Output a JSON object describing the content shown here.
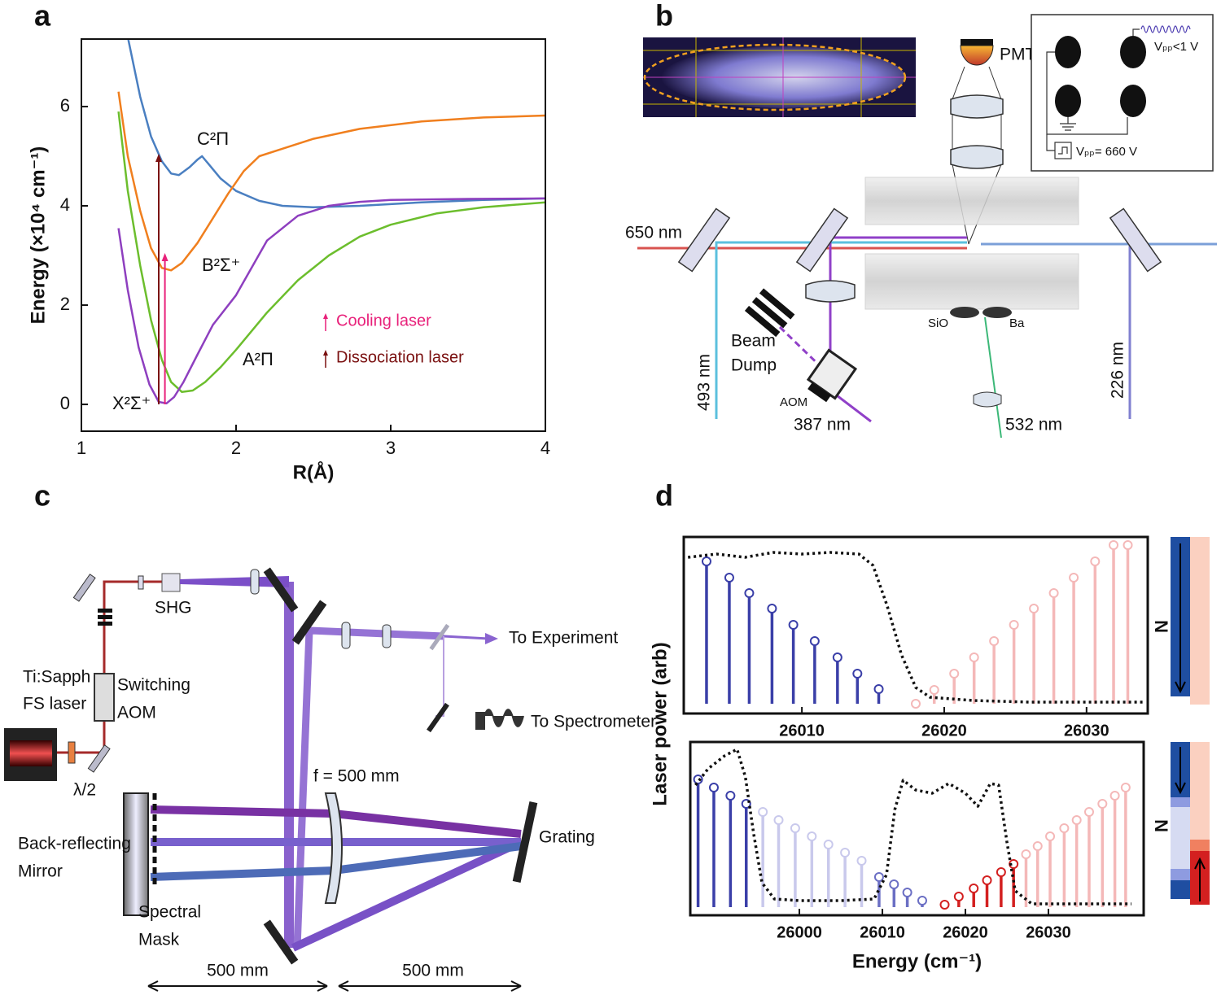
{
  "panel_labels": [
    "a",
    "b",
    "c",
    "d"
  ],
  "chart_data": [
    {
      "type": "line",
      "x_label": "R(Å)",
      "y_label": "Energy (×10⁴ cm⁻¹)",
      "xlim": [
        1,
        4
      ],
      "ylim": [
        -0.54,
        7.36
      ],
      "xticks": [
        1,
        2,
        3,
        4
      ],
      "yticks": [
        0,
        2,
        4,
        6
      ],
      "series": [
        {
          "name": "C²Π",
          "color": "#4a7fc1",
          "x": [
            1.3,
            1.38,
            1.45,
            1.52,
            1.58,
            1.63,
            1.7,
            1.75,
            1.78,
            1.82,
            1.9,
            2.0,
            2.15,
            2.3,
            2.5,
            2.8,
            3.2,
            3.6,
            4.0
          ],
          "values": [
            7.4,
            6.2,
            5.4,
            4.9,
            4.65,
            4.62,
            4.78,
            4.93,
            5.0,
            4.85,
            4.55,
            4.3,
            4.1,
            4.0,
            3.97,
            4.0,
            4.07,
            4.12,
            4.15
          ]
        },
        {
          "name": "B²Σ⁺",
          "color": "#f07f1e",
          "x": [
            1.24,
            1.3,
            1.38,
            1.45,
            1.52,
            1.58,
            1.65,
            1.75,
            1.85,
            1.95,
            2.05,
            2.15,
            2.3,
            2.5,
            2.8,
            3.2,
            3.6,
            4.0
          ],
          "values": [
            6.3,
            5.0,
            3.9,
            3.15,
            2.75,
            2.7,
            2.85,
            3.25,
            3.75,
            4.25,
            4.7,
            5.0,
            5.15,
            5.35,
            5.55,
            5.7,
            5.78,
            5.82
          ]
        },
        {
          "name": "A²Π",
          "color": "#6cbe2d",
          "x": [
            1.24,
            1.3,
            1.38,
            1.45,
            1.52,
            1.58,
            1.65,
            1.72,
            1.8,
            1.9,
            2.0,
            2.2,
            2.4,
            2.6,
            2.8,
            3.0,
            3.3,
            3.6,
            4.0
          ],
          "values": [
            5.9,
            4.3,
            2.8,
            1.7,
            0.9,
            0.45,
            0.25,
            0.28,
            0.45,
            0.75,
            1.1,
            1.85,
            2.5,
            3.0,
            3.38,
            3.62,
            3.85,
            3.97,
            4.07
          ]
        },
        {
          "name": "X²Σ⁺",
          "color": "#8e3fbf",
          "x": [
            1.24,
            1.3,
            1.37,
            1.44,
            1.5,
            1.55,
            1.6,
            1.66,
            1.75,
            1.85,
            2.0,
            2.2,
            2.4,
            2.6,
            2.8,
            3.0,
            3.5,
            4.0
          ],
          "values": [
            3.55,
            2.3,
            1.15,
            0.4,
            0.05,
            0.02,
            0.15,
            0.45,
            1.0,
            1.6,
            2.2,
            3.3,
            3.8,
            4.0,
            4.08,
            4.12,
            4.14,
            4.15
          ]
        }
      ],
      "arrows": [
        {
          "name": "Cooling laser",
          "color": "#e8217a",
          "x": 1.54,
          "from": 0,
          "to": 3.05
        },
        {
          "name": "Dissociation laser",
          "color": "#7a1010",
          "x": 1.5,
          "from": 0,
          "to": 5.05
        }
      ]
    },
    {
      "type": "stem",
      "y_label": "Laser power (arb)",
      "side_label": "N",
      "xlim": [
        26001.7,
        26034.3
      ],
      "ylim": [
        -0.06,
        1.025
      ],
      "xticks": [
        26010,
        26020,
        26030
      ],
      "series": [
        {
          "style": "stem",
          "color": "#3a3fa8",
          "x": [
            26003.3,
            26004.9,
            26006.3,
            26007.9,
            26009.4,
            26010.9,
            26012.5,
            26013.9,
            26015.4
          ],
          "values": [
            0.875,
            0.775,
            0.68,
            0.585,
            0.485,
            0.385,
            0.285,
            0.185,
            0.09
          ]
        },
        {
          "style": "stem",
          "color": "#f4b8b8",
          "x": [
            26018.0,
            26019.3,
            26020.7,
            26022.1,
            26023.5,
            26024.9,
            26026.3,
            26027.7,
            26029.1,
            26030.6,
            26031.9,
            26032.9
          ],
          "values": [
            0,
            0.085,
            0.185,
            0.285,
            0.385,
            0.485,
            0.585,
            0.68,
            0.775,
            0.875,
            0.975,
            0.975
          ]
        },
        {
          "style": "dotted",
          "color": "#111111",
          "x": [
            26002,
            26004,
            26006,
            26008,
            26010,
            26012,
            26014,
            26015,
            26016,
            26017,
            26018,
            26019,
            26022,
            26026,
            26030,
            26034
          ],
          "values": [
            0.9,
            0.92,
            0.9,
            0.93,
            0.92,
            0.93,
            0.92,
            0.85,
            0.6,
            0.3,
            0.1,
            0.04,
            0.02,
            0.01,
            0.01,
            0.01
          ]
        }
      ]
    },
    {
      "type": "stem",
      "x_label": "Energy (cm⁻¹)",
      "side_label": "N",
      "xlim": [
        25986.86,
        26041.47
      ],
      "ylim": [
        -0.05,
        1.015
      ],
      "xticks": [
        26000,
        26010,
        26020,
        26030
      ],
      "series": [
        {
          "style": "stem",
          "color": "#3a3fa8",
          "x": [
            25987.8,
            25989.7,
            25991.7,
            25993.6
          ],
          "values": [
            0.785,
            0.735,
            0.685,
            0.635
          ]
        },
        {
          "style": "stem",
          "color": "#c9c9ec",
          "x": [
            25995.6,
            25997.5,
            25999.5,
            26001.5,
            26003.5,
            26005.5,
            26007.5
          ],
          "values": [
            0.585,
            0.535,
            0.485,
            0.435,
            0.385,
            0.335,
            0.285
          ]
        },
        {
          "style": "stem",
          "color": "#6b6fc4",
          "x": [
            26009.6,
            26011.4,
            26013.0,
            26014.8
          ],
          "values": [
            0.185,
            0.14,
            0.09,
            0.04
          ]
        },
        {
          "style": "stem",
          "color": "#d32020",
          "x": [
            26017.5,
            26019.2,
            26021.0,
            26022.6,
            26024.3,
            26025.8
          ],
          "values": [
            0.015,
            0.065,
            0.115,
            0.165,
            0.215,
            0.265
          ]
        },
        {
          "style": "stem",
          "color": "#f4b8b8",
          "x": [
            26027.3,
            26028.7,
            26030.2,
            26031.9,
            26033.4,
            26034.9,
            26036.5,
            26038.0,
            26039.3
          ],
          "values": [
            0.325,
            0.375,
            0.435,
            0.485,
            0.535,
            0.585,
            0.635,
            0.685,
            0.735
          ]
        },
        {
          "style": "dotted",
          "color": "#111111",
          "x": [
            25987.5,
            25989,
            25991,
            25992.5,
            25993.5,
            25994.5,
            25995.5,
            25997,
            26000,
            26005,
            26009,
            26010.5,
            26011.5,
            26012.5,
            26014,
            26016,
            26018,
            26020,
            26021.5,
            26023,
            26024,
            26025,
            26026,
            26028,
            26035,
            26040
          ],
          "values": [
            0.75,
            0.85,
            0.93,
            0.97,
            0.8,
            0.45,
            0.15,
            0.05,
            0.04,
            0.04,
            0.05,
            0.2,
            0.6,
            0.78,
            0.72,
            0.7,
            0.76,
            0.7,
            0.62,
            0.76,
            0.75,
            0.4,
            0.1,
            0.02,
            0.02,
            0.02
          ]
        }
      ]
    }
  ],
  "diagram_b": {
    "pmt": "PMT",
    "v_rf": "Vₚₚ<1 V",
    "v_dc": "Vₚₚ= 660 V",
    "beam_650": "650 nm",
    "beam_493": "493 nm",
    "beam_dump": [
      "Beam",
      "Dump"
    ],
    "aom": "AOM",
    "beam_387": "387 nm",
    "sio": "SiO",
    "ba": "Ba",
    "beam_532": "532 nm",
    "beam_226": "226 nm"
  },
  "diagram_c": {
    "laser": [
      "Ti:Sapph",
      "FS laser"
    ],
    "half_wave": "λ/2",
    "aom": [
      "Switching",
      "AOM"
    ],
    "shg": "SHG",
    "to_experiment": "To Experiment",
    "to_spectrometer": "To Spectrometer",
    "focal": "f = 500 mm",
    "grating": "Grating",
    "mirror": [
      "Back-reflecting",
      "Mirror"
    ],
    "mask": [
      "Spectral",
      "Mask"
    ],
    "distances": [
      "500 mm",
      "500 mm"
    ]
  }
}
